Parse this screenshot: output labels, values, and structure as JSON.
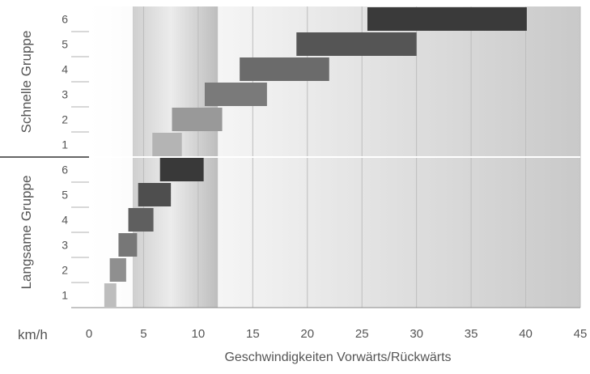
{
  "chart_data": {
    "type": "bar",
    "orientation": "horizontal-range",
    "xlabel": "Geschwindigkeiten Vorwärts/Rückwärts",
    "unit_label": "km/h",
    "xlim": [
      0,
      45
    ],
    "x_ticks": [
      0,
      5,
      10,
      15,
      20,
      25,
      30,
      35,
      40,
      45
    ],
    "grid": true,
    "groups": [
      {
        "name": "Schnelle Gruppe",
        "gears": [
          {
            "gear": "1",
            "start": 5.8,
            "end": 8.5,
            "color": "#b4b4b4"
          },
          {
            "gear": "2",
            "start": 7.6,
            "end": 12.2,
            "color": "#999999"
          },
          {
            "gear": "3",
            "start": 10.6,
            "end": 16.3,
            "color": "#7a7a7a"
          },
          {
            "gear": "4",
            "start": 13.8,
            "end": 22.0,
            "color": "#6b6b6b"
          },
          {
            "gear": "5",
            "start": 19.0,
            "end": 30.0,
            "color": "#555555"
          },
          {
            "gear": "6",
            "start": 25.5,
            "end": 40.1,
            "color": "#3a3a3a"
          }
        ]
      },
      {
        "name": "Langsame Gruppe",
        "gears": [
          {
            "gear": "1",
            "start": 1.4,
            "end": 2.5,
            "color": "#bdbdbd"
          },
          {
            "gear": "2",
            "start": 1.9,
            "end": 3.4,
            "color": "#8f8f8f"
          },
          {
            "gear": "3",
            "start": 2.7,
            "end": 4.4,
            "color": "#777777"
          },
          {
            "gear": "4",
            "start": 3.6,
            "end": 5.9,
            "color": "#5f5f5f"
          },
          {
            "gear": "5",
            "start": 4.5,
            "end": 7.5,
            "color": "#4e4e4e"
          },
          {
            "gear": "6",
            "start": 6.5,
            "end": 10.5,
            "color": "#393939"
          }
        ]
      }
    ],
    "highlight_band": {
      "start": 4.0,
      "end": 11.8
    }
  }
}
